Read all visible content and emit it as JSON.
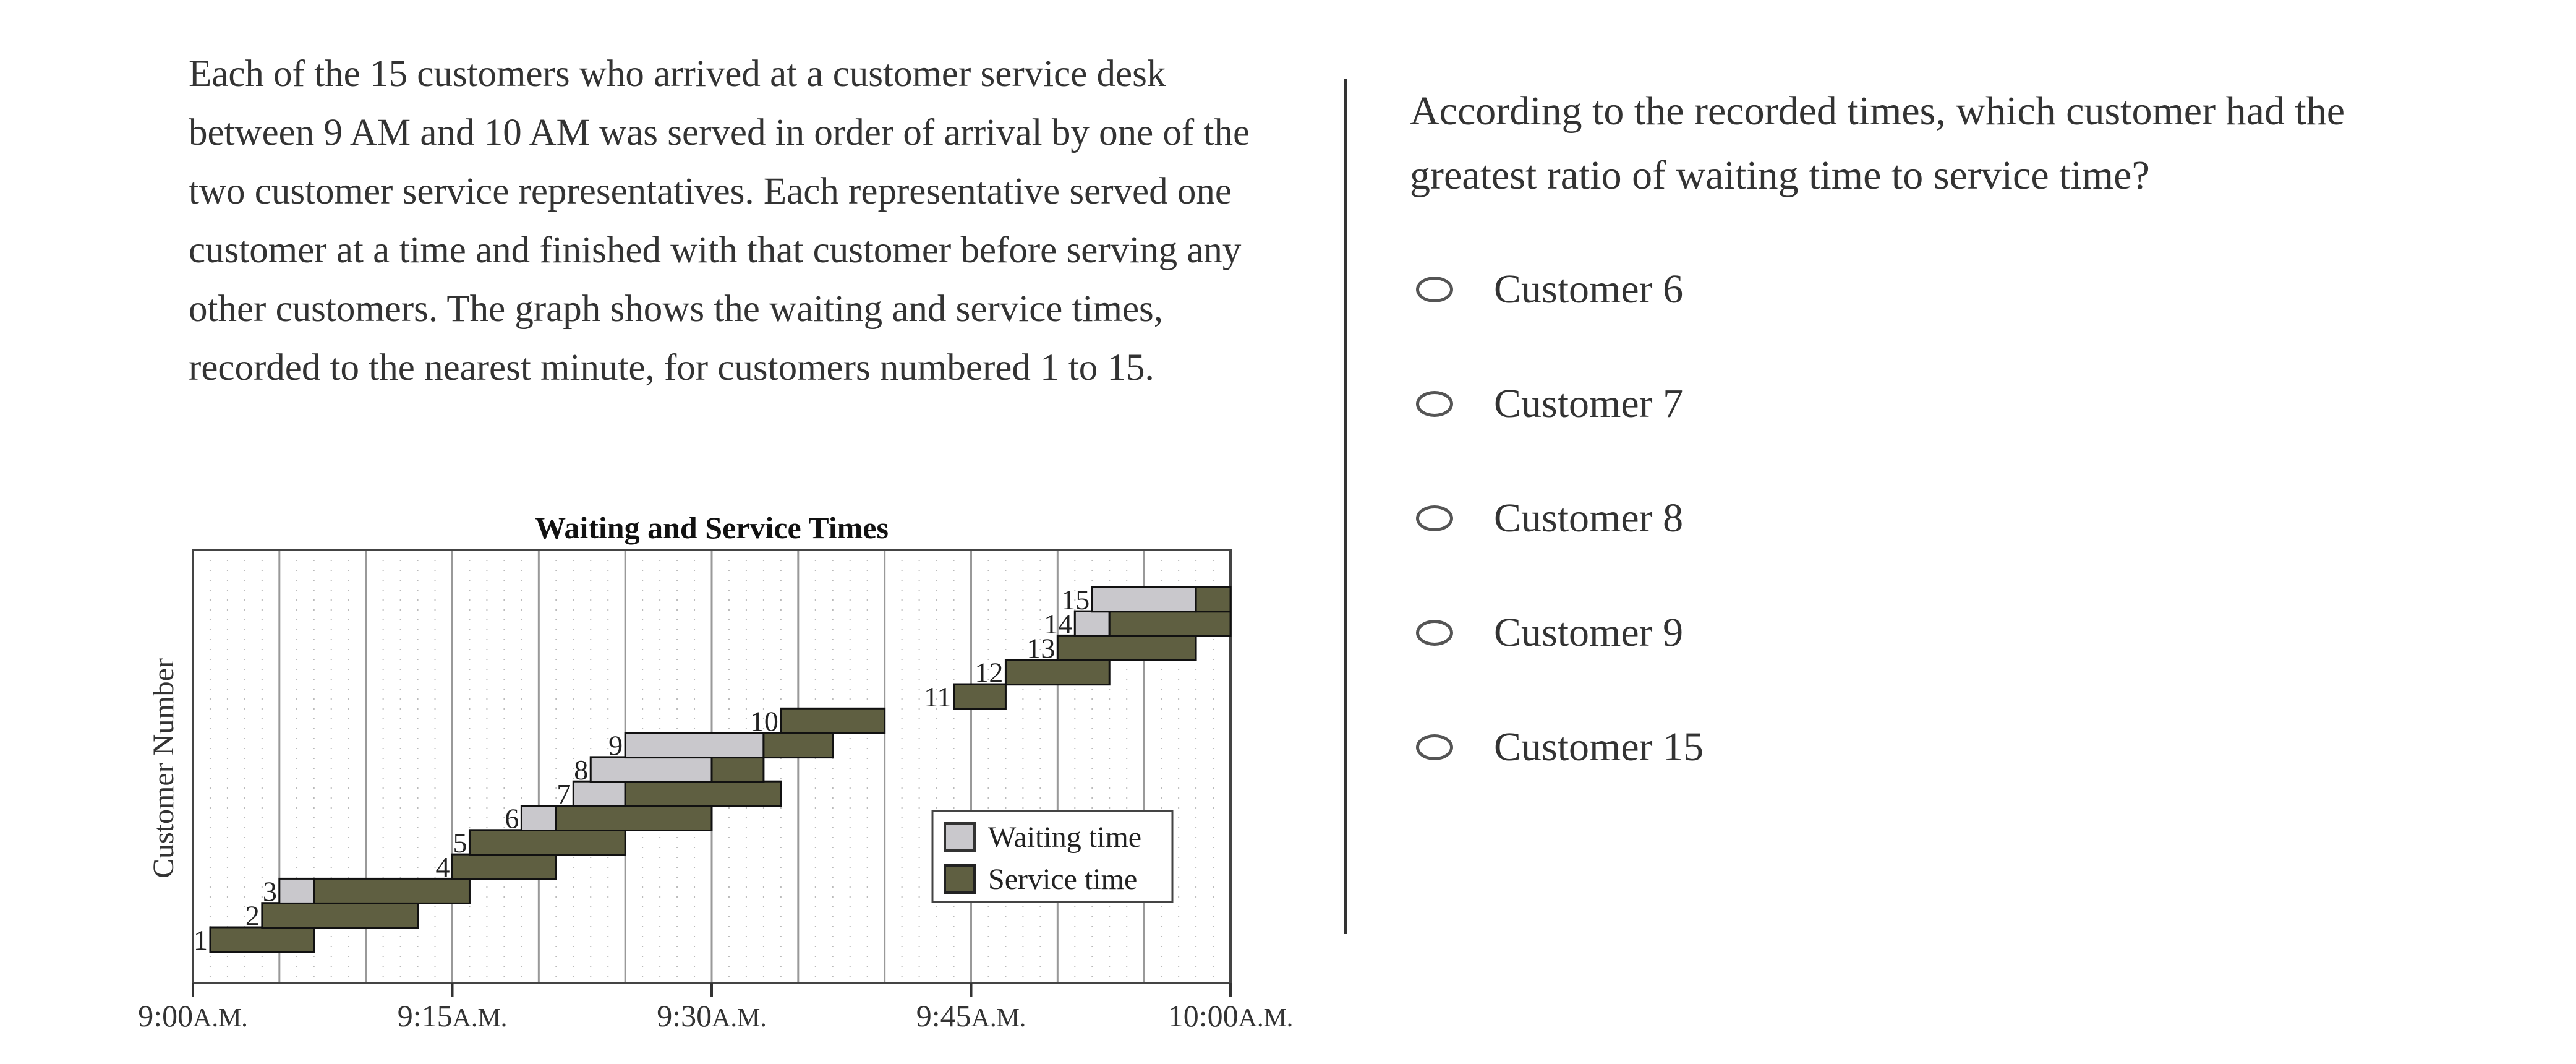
{
  "passage": "Each of the 15 customers who arrived at a customer service desk between 9 AM and 10 AM was served in order of arrival by one of the two customer service representatives. Each representative served one customer at a time and finished with that customer before serving any other customers. The graph shows the waiting and service times, recorded to the nearest minute, for customers numbered 1 to 15.",
  "question": "According to the recorded times, which customer had the greatest ratio of waiting time to service time?",
  "options": [
    {
      "label": "Customer 6"
    },
    {
      "label": "Customer 7"
    },
    {
      "label": "Customer 8"
    },
    {
      "label": "Customer 9"
    },
    {
      "label": "Customer 15"
    }
  ],
  "chart_data": {
    "type": "bar",
    "orientation": "horizontal-stacked-gantt",
    "title": "Waiting and Service Times",
    "ylabel": "Customer Number",
    "xlabel": "",
    "x_unit": "minutes after 9:00 A.M.",
    "xlim": [
      0,
      60
    ],
    "x_ticks": [
      {
        "value": 0,
        "label": "9:00",
        "suffix": "A.M."
      },
      {
        "value": 15,
        "label": "9:15",
        "suffix": "A.M."
      },
      {
        "value": 30,
        "label": "9:30",
        "suffix": "A.M."
      },
      {
        "value": 45,
        "label": "9:45",
        "suffix": "A.M."
      },
      {
        "value": 60,
        "label": "10:00",
        "suffix": "A.M."
      }
    ],
    "grid": {
      "major_every_minutes": 5,
      "minor_every_minutes": 1
    },
    "legend": {
      "placement": "lower-right",
      "entries": [
        "Waiting time",
        "Service time"
      ]
    },
    "colors": {
      "waiting": "#c9c8cc",
      "service": "#5f5f41"
    },
    "customers": [
      {
        "label": "1",
        "arrival": 1,
        "waiting": 0,
        "service": 6
      },
      {
        "label": "2",
        "arrival": 4,
        "waiting": 0,
        "service": 9
      },
      {
        "label": "3",
        "arrival": 5,
        "waiting": 2,
        "service": 9
      },
      {
        "label": "4",
        "arrival": 15,
        "waiting": 0,
        "service": 6
      },
      {
        "label": "5",
        "arrival": 16,
        "waiting": 0,
        "service": 9
      },
      {
        "label": "6",
        "arrival": 19,
        "waiting": 2,
        "service": 9
      },
      {
        "label": "7",
        "arrival": 22,
        "waiting": 3,
        "service": 9
      },
      {
        "label": "8",
        "arrival": 23,
        "waiting": 7,
        "service": 3
      },
      {
        "label": "9",
        "arrival": 25,
        "waiting": 8,
        "service": 4
      },
      {
        "label": "10",
        "arrival": 34,
        "waiting": 0,
        "service": 6
      },
      {
        "label": "11",
        "arrival": 44,
        "waiting": 0,
        "service": 3
      },
      {
        "label": "12",
        "arrival": 47,
        "waiting": 0,
        "service": 6
      },
      {
        "label": "13",
        "arrival": 50,
        "waiting": 0,
        "service": 8
      },
      {
        "label": "14",
        "arrival": 51,
        "waiting": 2,
        "service": 7
      },
      {
        "label": "15",
        "arrival": 52,
        "waiting": 6,
        "service": 2
      }
    ]
  }
}
